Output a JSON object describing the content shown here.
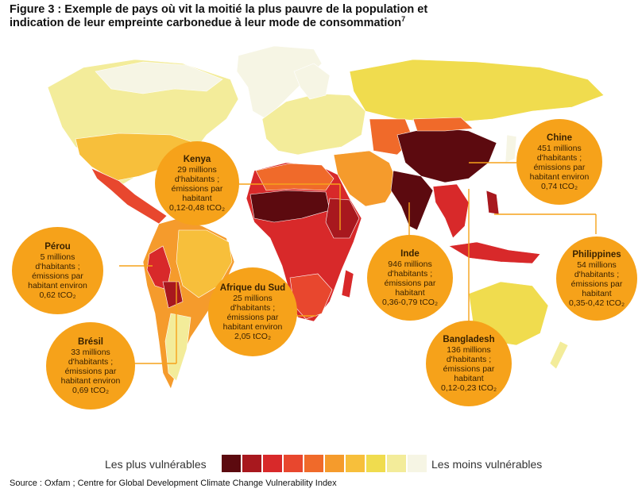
{
  "title": {
    "main": "Figure 3 : Exemple de pays où vit la moitié la plus pauvre de la population et indication de leur empreinte carbonedue à leur mode de consommation",
    "footnote": "7"
  },
  "colors": {
    "c1": "#5c0a0f",
    "c2": "#a8181e",
    "c3": "#d8292a",
    "c4": "#e8472e",
    "c5": "#f06a2a",
    "c6": "#f59b2c",
    "c7": "#f7bf3b",
    "c8": "#f0dc4e",
    "c9": "#f3ec9a",
    "c10": "#f6f5e4",
    "bubble": "#f6a21a",
    "ocean": "#ffffff"
  },
  "callouts": {
    "kenya": {
      "name": "Kenya",
      "desc": "29 millions\nd'habitants ;\némissions par\nhabitant\n0,12-0,48 tCO₂"
    },
    "chine": {
      "name": "Chine",
      "desc": "451 millions\nd'habitants ;\némissions par\nhabitant environ\n0,74 tCO₂"
    },
    "perou": {
      "name": "Pérou",
      "desc": "5 millions\nd'habitants ;\némissions par\nhabitant environ\n0,62 tCO₂"
    },
    "inde": {
      "name": "Inde",
      "desc": "946 millions\nd'habitants ;\némissions par\nhabitant\n0,36-0,79 tCO₂"
    },
    "afrique_du_sud": {
      "name": "Afrique du Sud",
      "desc": "25 millions\nd'habitants ;\némissions par\nhabitant environ\n2,05 tCO₂"
    },
    "philippines": {
      "name": "Philippines",
      "desc": "54 millions\nd'habitants ;\némissions par\nhabitant\n0,35-0,42 tCO₂"
    },
    "bresil": {
      "name": "Brésil",
      "desc": "33 millions\nd'habitants ;\némissions par\nhabitant environ\n0,69 tCO₂"
    },
    "bangladesh": {
      "name": "Bangladesh",
      "desc": "136 millions\nd'habitants ;\némissions par\nhabitant\n0,12-0,23 tCO₂"
    }
  },
  "legend": {
    "left_label": "Les plus vulnérables",
    "right_label": "Les moins vulnérables"
  },
  "source": "Source : Oxfam ; Centre for Global Development Climate Change Vulnerability Index"
}
